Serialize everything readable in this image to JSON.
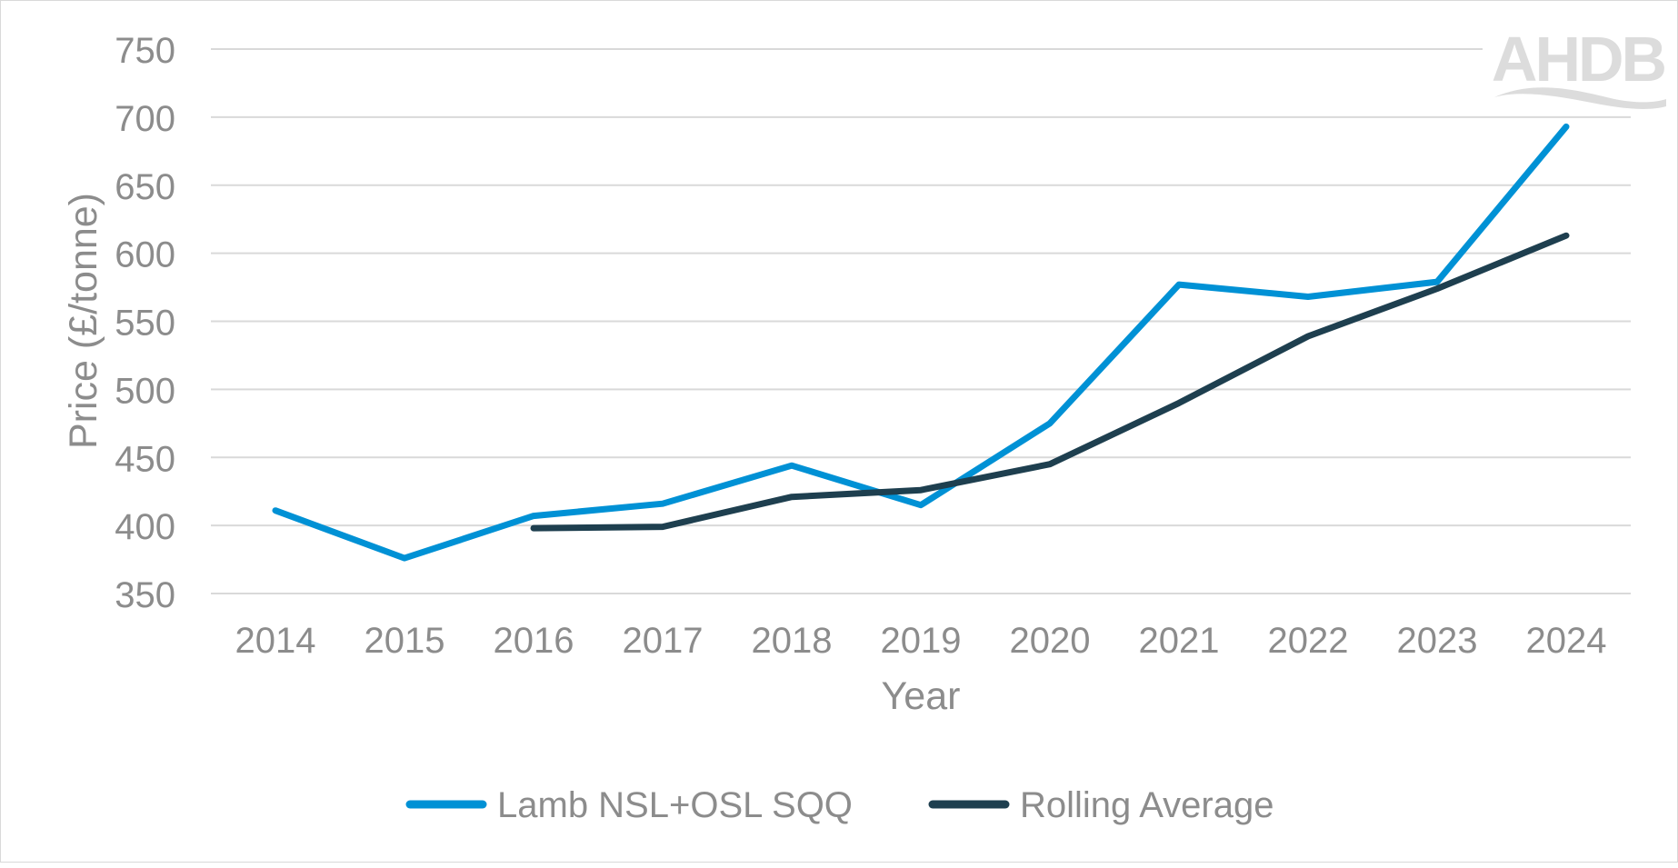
{
  "chart_data": {
    "type": "line",
    "title": "",
    "xlabel": "Year",
    "ylabel": "Price (£/tonne)",
    "categories": [
      "2014",
      "2015",
      "2016",
      "2017",
      "2018",
      "2019",
      "2020",
      "2021",
      "2022",
      "2023",
      "2024"
    ],
    "ylim": [
      350,
      750
    ],
    "yticks": [
      350,
      400,
      450,
      500,
      550,
      600,
      650,
      700,
      750
    ],
    "grid": true,
    "legend_position": "bottom",
    "series": [
      {
        "name": "Lamb NSL+OSL SQQ",
        "color": "#0091d5",
        "values": [
          411,
          376,
          407,
          416,
          444,
          415,
          475,
          577,
          568,
          579,
          693
        ]
      },
      {
        "name": "Rolling Average",
        "color": "#1e3f4f",
        "values": [
          null,
          null,
          398,
          399,
          421,
          426,
          445,
          490,
          539,
          574,
          613
        ]
      }
    ],
    "logo": "AHDB"
  }
}
